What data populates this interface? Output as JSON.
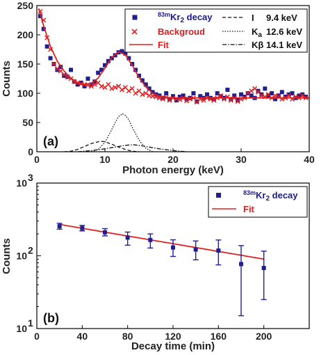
{
  "chart_data": [
    {
      "type": "scatter",
      "panel_label": "(a)",
      "xlabel": "Photon energy (keV)",
      "ylabel": "Counts",
      "xlim": [
        0,
        40
      ],
      "ylim": [
        0,
        250
      ],
      "x_ticks": [
        "0",
        "10",
        "20",
        "30",
        "40"
      ],
      "y_ticks": [
        "0",
        "50",
        "100",
        "150",
        "200",
        "250"
      ],
      "grid": false,
      "legend_position": "top-right",
      "legend": {
        "decay_prefix": "83m",
        "decay_main": "Kr",
        "decay_sub": "2",
        "decay_suffix": " decay",
        "background": "Backgroud",
        "fit": "Fit",
        "line_i": "I",
        "line_i_energy": "9.4 keV",
        "line_ka_main": "K",
        "line_ka_sub": "a",
        "line_ka_energy": "12.6 keV",
        "line_kb_main": "Kβ",
        "line_kb_energy": "14.1 keV"
      },
      "colors": {
        "decay": "#1f1f8f",
        "background": "#e02020",
        "fit": "#e02020",
        "components": "#111111"
      },
      "series": [
        {
          "name": "83mKr2 decay",
          "marker": "square",
          "x": [
            0.5,
            1.0,
            1.5,
            2.0,
            2.5,
            3.0,
            3.5,
            4.0,
            4.5,
            5.0,
            5.5,
            6.0,
            6.5,
            7.0,
            7.5,
            8.0,
            8.5,
            9.0,
            9.5,
            10.0,
            10.5,
            11.0,
            11.5,
            12.0,
            12.5,
            13.0,
            13.5,
            14.0,
            14.5,
            15.0,
            15.5,
            16.0,
            16.5,
            17.0,
            17.5,
            18.0,
            18.5,
            19.0,
            19.5,
            20.0,
            20.5,
            21.0,
            21.5,
            22.0,
            22.5,
            23.0,
            23.5,
            24.0,
            24.5,
            25.0,
            25.5,
            26.0,
            26.5,
            27.0,
            27.5,
            28.0,
            28.5,
            29.0,
            29.5,
            30.0,
            30.5,
            31.0,
            31.5,
            32.0,
            32.5,
            33.0,
            33.5,
            34.0,
            34.5,
            35.0,
            35.5,
            36.0,
            36.5,
            37.0,
            37.5,
            38.0,
            38.5,
            39.0,
            39.5
          ],
          "y": [
            232,
            210,
            180,
            160,
            150,
            140,
            145,
            130,
            128,
            140,
            120,
            115,
            118,
            112,
            125,
            115,
            120,
            135,
            140,
            148,
            155,
            160,
            165,
            170,
            172,
            168,
            160,
            150,
            140,
            130,
            122,
            115,
            108,
            102,
            98,
            96,
            92,
            100,
            90,
            95,
            88,
            94,
            96,
            90,
            92,
            100,
            86,
            95,
            92,
            98,
            92,
            90,
            100,
            95,
            92,
            106,
            90,
            96,
            88,
            98,
            94,
            100,
            96,
            92,
            104,
            98,
            108,
            96,
            100,
            90,
            96,
            102,
            94,
            98,
            100,
            92,
            96,
            98,
            94
          ]
        },
        {
          "name": "Backgroud",
          "marker": "cross",
          "x": [
            0.5,
            1.0,
            1.5,
            2.0,
            2.5,
            3.0,
            3.5,
            4.0,
            4.5,
            5.0,
            5.5,
            6.0,
            6.5,
            7.0,
            7.5,
            8.0,
            8.5,
            9.0,
            9.5,
            10.0,
            10.5,
            11.0,
            11.5,
            12.0,
            12.5,
            13.0,
            13.5,
            14.0,
            14.5,
            15.0,
            15.5,
            16.0,
            16.5,
            17.0,
            17.5,
            18.0,
            18.5,
            19.0,
            19.5,
            20.0,
            20.5,
            21.0,
            21.5,
            22.0,
            22.5,
            23.0,
            23.5,
            24.0,
            24.5,
            25.0,
            25.5,
            26.0,
            26.5,
            27.0,
            27.5,
            28.0,
            28.5,
            29.0,
            29.5,
            30.0,
            30.5,
            31.0,
            31.5,
            32.0,
            32.5,
            33.0,
            33.5,
            34.0,
            34.5,
            35.0,
            35.5,
            36.0,
            36.5,
            37.0,
            37.5,
            38.0,
            38.5,
            39.0,
            39.5
          ],
          "y": [
            240,
            225,
            195,
            175,
            150,
            142,
            138,
            132,
            128,
            125,
            120,
            118,
            116,
            115,
            114,
            112,
            115,
            118,
            112,
            110,
            115,
            108,
            110,
            112,
            106,
            110,
            104,
            108,
            100,
            104,
            98,
            100,
            96,
            95,
            94,
            92,
            90,
            93,
            88,
            92,
            90,
            89,
            92,
            87,
            90,
            92,
            85,
            90,
            88,
            92,
            90,
            88,
            92,
            96,
            90,
            94,
            88,
            92,
            86,
            90,
            92,
            100,
            104,
            108,
            102,
            96,
            94,
            98,
            92,
            96,
            94,
            90,
            92,
            96,
            90,
            94,
            92,
            96,
            92
          ]
        },
        {
          "name": "Fit",
          "style": "solid",
          "x": [
            0.3,
            1,
            2,
            3,
            4,
            5,
            6,
            7,
            8,
            9,
            10,
            11,
            12,
            13,
            14,
            15,
            16,
            17,
            18,
            19,
            20,
            22,
            24,
            26,
            28,
            30,
            32,
            34,
            36,
            38,
            40
          ],
          "y": [
            245,
            215,
            180,
            155,
            138,
            126,
            118,
            115,
            117,
            126,
            143,
            161,
            171,
            166,
            148,
            127,
            111,
            100,
            95,
            93,
            92,
            92,
            92,
            92,
            92,
            92,
            92,
            92,
            92,
            92,
            92
          ]
        },
        {
          "name": "I 9.4 keV",
          "style": "dashed",
          "x": [
            4,
            5,
            6,
            7,
            8,
            9,
            9.4,
            10,
            11,
            12,
            13,
            14,
            15
          ],
          "y": [
            0,
            1,
            4,
            9,
            14,
            17,
            18,
            17,
            13,
            8,
            4,
            1,
            0
          ]
        },
        {
          "name": "Ka 12.6 keV",
          "style": "dotted",
          "x": [
            8,
            9,
            10,
            11,
            11.5,
            12,
            12.6,
            13,
            13.5,
            14,
            15,
            16,
            17
          ],
          "y": [
            0,
            4,
            16,
            38,
            50,
            60,
            65,
            62,
            55,
            42,
            20,
            6,
            0
          ]
        },
        {
          "name": "Kβ 14.1 keV",
          "style": "dashdot",
          "x": [
            6,
            8,
            10,
            12,
            13,
            14.1,
            15,
            16,
            18,
            20,
            22
          ],
          "y": [
            0,
            2,
            5,
            9,
            11,
            12,
            11,
            9,
            5,
            2,
            0
          ]
        }
      ]
    },
    {
      "type": "scatter",
      "panel_label": "(b)",
      "xlabel": "Decay time (min)",
      "ylabel": "Counts",
      "xlim": [
        0,
        240
      ],
      "ylim": [
        10,
        1000
      ],
      "yscale": "log",
      "x_ticks": [
        "0",
        "40",
        "80",
        "120",
        "160",
        "200"
      ],
      "y_ticks": [
        {
          "base": "10",
          "exp": "1",
          "value": 10
        },
        {
          "base": "10",
          "exp": "2",
          "value": 100
        },
        {
          "base": "10",
          "exp": "3",
          "value": 1000
        }
      ],
      "grid": false,
      "legend_position": "top-right",
      "legend": {
        "decay_prefix": "83m",
        "decay_main": "Kr",
        "decay_sub": "2",
        "decay_suffix": " decay",
        "fit": "Fit"
      },
      "colors": {
        "decay": "#1f1f8f",
        "fit": "#e02020"
      },
      "series": [
        {
          "name": "83mKr2 decay",
          "marker": "square",
          "x": [
            20,
            40,
            60,
            80,
            100,
            120,
            140,
            160,
            180,
            200
          ],
          "y": [
            255,
            240,
            210,
            178,
            165,
            130,
            122,
            118,
            77,
            68
          ],
          "err_low": [
            232,
            220,
            188,
            140,
            128,
            98,
            88,
            75,
            15,
            25
          ],
          "err_high": [
            280,
            262,
            236,
            212,
            200,
            166,
            160,
            165,
            138,
            116
          ]
        },
        {
          "name": "Fit",
          "style": "solid",
          "x": [
            20,
            200
          ],
          "y": [
            270,
            90
          ]
        }
      ]
    }
  ]
}
